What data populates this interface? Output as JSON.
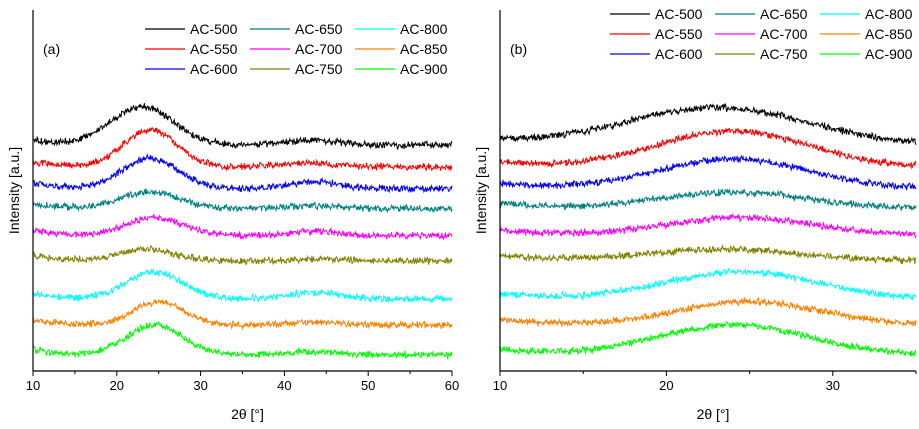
{
  "figure": {
    "title": ""
  },
  "chart_data": [
    {
      "type": "line",
      "panel_label": "(a)",
      "xlabel": "2θ [°]",
      "ylabel": "Intensity [a.u.]",
      "xlim": [
        10,
        60
      ],
      "xticks": [
        10,
        20,
        30,
        40,
        50,
        60
      ],
      "yticks_shown": false,
      "legend_position": "top-right",
      "series": [
        {
          "name": "AC-500",
          "color": "#000000",
          "baseline": 15,
          "peaks": [
            {
              "x": 23,
              "width": 3.8,
              "height": 4.3
            },
            {
              "x": 43,
              "width": 3.5,
              "height": 0.55
            }
          ]
        },
        {
          "name": "AC-550",
          "color": "#ff0000",
          "baseline": 12.6,
          "peaks": [
            {
              "x": 24,
              "width": 3.2,
              "height": 4.1
            },
            {
              "x": 43,
              "width": 3.5,
              "height": 0.4
            }
          ]
        },
        {
          "name": "AC-600",
          "color": "#0000ff",
          "baseline": 10.2,
          "peaks": [
            {
              "x": 24,
              "width": 3.3,
              "height": 3.4
            },
            {
              "x": 43.5,
              "width": 3,
              "height": 0.8
            }
          ]
        },
        {
          "name": "AC-650",
          "color": "#008080",
          "baseline": 8.0,
          "peaks": [
            {
              "x": 24,
              "width": 3.5,
              "height": 1.8
            },
            {
              "x": 43.5,
              "width": 3,
              "height": 0.35
            }
          ]
        },
        {
          "name": "AC-700",
          "color": "#ff00ff",
          "baseline": 5.0,
          "peaks": [
            {
              "x": 24.5,
              "width": 3.3,
              "height": 2.0
            },
            {
              "x": 43.5,
              "width": 2.5,
              "height": 0.5
            }
          ]
        },
        {
          "name": "AC-750",
          "color": "#808000",
          "baseline": 2.2,
          "peaks": [
            {
              "x": 23.5,
              "width": 3.3,
              "height": 1.3
            },
            {
              "x": 44,
              "width": 2.5,
              "height": 0.2
            }
          ]
        },
        {
          "name": "AC-800",
          "color": "#00ffff",
          "baseline": -2.0,
          "peaks": [
            {
              "x": 24.5,
              "width": 3.3,
              "height": 3.0
            },
            {
              "x": 43.5,
              "width": 3,
              "height": 0.7
            }
          ]
        },
        {
          "name": "AC-850",
          "color": "#ff8000",
          "baseline": -4.9,
          "peaks": [
            {
              "x": 25,
              "width": 3.0,
              "height": 2.6
            },
            {
              "x": 43.5,
              "width": 3,
              "height": 0.3
            }
          ]
        },
        {
          "name": "AC-900",
          "color": "#00ff00",
          "baseline": -8.2,
          "peaks": [
            {
              "x": 24.5,
              "width": 3.3,
              "height": 3.3
            },
            {
              "x": 43,
              "width": 3,
              "height": 0.3
            }
          ]
        }
      ]
    },
    {
      "type": "line",
      "panel_label": "(b)",
      "xlabel": "2θ [°]",
      "ylabel": "Intensity [a.u.]",
      "xlim": [
        10,
        35
      ],
      "xticks": [
        10,
        20,
        30
      ],
      "yticks_shown": false,
      "legend_position": "top",
      "series": [
        {
          "name": "AC-500",
          "color": "#000000",
          "baseline": 15,
          "peaks": [
            {
              "x": 23,
              "width": 5.5,
              "height": 4.2
            }
          ]
        },
        {
          "name": "AC-550",
          "color": "#ff0000",
          "baseline": 12.6,
          "peaks": [
            {
              "x": 24,
              "width": 4.5,
              "height": 4.0
            }
          ]
        },
        {
          "name": "AC-600",
          "color": "#0000ff",
          "baseline": 10.2,
          "peaks": [
            {
              "x": 24,
              "width": 4.5,
              "height": 3.3
            }
          ]
        },
        {
          "name": "AC-650",
          "color": "#008080",
          "baseline": 8.0,
          "peaks": [
            {
              "x": 24,
              "width": 4.5,
              "height": 1.8
            }
          ]
        },
        {
          "name": "AC-700",
          "color": "#ff00ff",
          "baseline": 5.0,
          "peaks": [
            {
              "x": 24.5,
              "width": 4.5,
              "height": 2.0
            }
          ]
        },
        {
          "name": "AC-750",
          "color": "#808000",
          "baseline": 2.2,
          "peaks": [
            {
              "x": 23.5,
              "width": 4.5,
              "height": 1.3
            }
          ]
        },
        {
          "name": "AC-800",
          "color": "#00ffff",
          "baseline": -2.0,
          "peaks": [
            {
              "x": 24.5,
              "width": 4.5,
              "height": 3.0
            }
          ]
        },
        {
          "name": "AC-850",
          "color": "#ff8000",
          "baseline": -4.9,
          "peaks": [
            {
              "x": 25,
              "width": 4.2,
              "height": 2.6
            }
          ]
        },
        {
          "name": "AC-900",
          "color": "#00ff00",
          "baseline": -8.2,
          "peaks": [
            {
              "x": 24,
              "width": 4.5,
              "height": 3.3
            }
          ]
        }
      ]
    }
  ]
}
